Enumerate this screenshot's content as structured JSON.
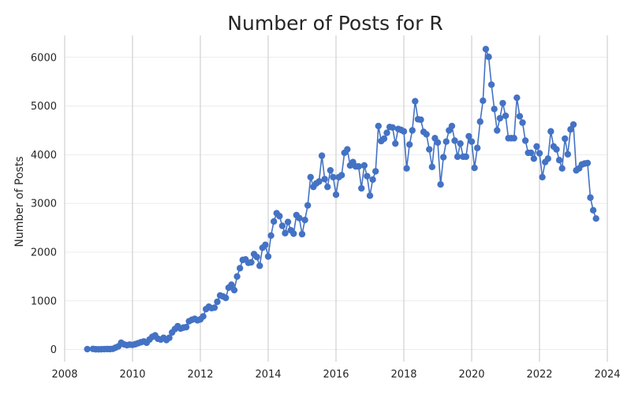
{
  "chart_data": {
    "type": "line",
    "title": "Number of Posts for R",
    "xlabel": "",
    "ylabel": "Number of Posts",
    "x_ticks": [
      "2008",
      "2010",
      "2012",
      "2014",
      "2016",
      "2018",
      "2020",
      "2022",
      "2024"
    ],
    "y_ticks": [
      "0",
      "1000",
      "2000",
      "3000",
      "4000",
      "5000",
      "6000"
    ],
    "xlim": [
      "2008-01",
      "2024-01"
    ],
    "ylim": [
      -250,
      6450
    ],
    "grid": true,
    "marker": "circle",
    "series": [
      {
        "color": "#4472C4",
        "points": [
          [
            "2008-09",
            8
          ],
          [
            "2008-11",
            12
          ],
          [
            "2008-12",
            5
          ],
          [
            "2009-01",
            4
          ],
          [
            "2009-02",
            6
          ],
          [
            "2009-03",
            8
          ],
          [
            "2009-04",
            10
          ],
          [
            "2009-05",
            9
          ],
          [
            "2009-06",
            14
          ],
          [
            "2009-07",
            38
          ],
          [
            "2009-08",
            65
          ],
          [
            "2009-09",
            140
          ],
          [
            "2009-10",
            105
          ],
          [
            "2009-11",
            90
          ],
          [
            "2009-12",
            100
          ],
          [
            "2010-01",
            95
          ],
          [
            "2010-02",
            110
          ],
          [
            "2010-03",
            130
          ],
          [
            "2010-04",
            150
          ],
          [
            "2010-05",
            165
          ],
          [
            "2010-06",
            140
          ],
          [
            "2010-07",
            205
          ],
          [
            "2010-08",
            260
          ],
          [
            "2010-09",
            290
          ],
          [
            "2010-10",
            220
          ],
          [
            "2010-11",
            205
          ],
          [
            "2010-12",
            240
          ],
          [
            "2011-01",
            195
          ],
          [
            "2011-02",
            240
          ],
          [
            "2011-03",
            350
          ],
          [
            "2011-04",
            420
          ],
          [
            "2011-05",
            480
          ],
          [
            "2011-06",
            430
          ],
          [
            "2011-07",
            450
          ],
          [
            "2011-08",
            460
          ],
          [
            "2011-09",
            580
          ],
          [
            "2011-10",
            610
          ],
          [
            "2011-11",
            630
          ],
          [
            "2011-12",
            600
          ],
          [
            "2012-01",
            620
          ],
          [
            "2012-02",
            680
          ],
          [
            "2012-03",
            830
          ],
          [
            "2012-04",
            880
          ],
          [
            "2012-05",
            850
          ],
          [
            "2012-06",
            860
          ],
          [
            "2012-07",
            980
          ],
          [
            "2012-08",
            1110
          ],
          [
            "2012-09",
            1090
          ],
          [
            "2012-10",
            1060
          ],
          [
            "2012-11",
            1270
          ],
          [
            "2012-12",
            1330
          ],
          [
            "2013-01",
            1220
          ],
          [
            "2013-02",
            1500
          ],
          [
            "2013-03",
            1670
          ],
          [
            "2013-04",
            1840
          ],
          [
            "2013-05",
            1850
          ],
          [
            "2013-06",
            1780
          ],
          [
            "2013-07",
            1790
          ],
          [
            "2013-08",
            1960
          ],
          [
            "2013-09",
            1900
          ],
          [
            "2013-10",
            1720
          ],
          [
            "2013-11",
            2090
          ],
          [
            "2013-12",
            2150
          ],
          [
            "2014-01",
            1910
          ],
          [
            "2014-02",
            2340
          ],
          [
            "2014-03",
            2630
          ],
          [
            "2014-04",
            2800
          ],
          [
            "2014-05",
            2740
          ],
          [
            "2014-06",
            2540
          ],
          [
            "2014-07",
            2390
          ],
          [
            "2014-08",
            2620
          ],
          [
            "2014-09",
            2450
          ],
          [
            "2014-10",
            2380
          ],
          [
            "2014-11",
            2760
          ],
          [
            "2014-12",
            2700
          ],
          [
            "2015-01",
            2370
          ],
          [
            "2015-02",
            2660
          ],
          [
            "2015-03",
            2960
          ],
          [
            "2015-04",
            3540
          ],
          [
            "2015-05",
            3340
          ],
          [
            "2015-06",
            3410
          ],
          [
            "2015-07",
            3450
          ],
          [
            "2015-08",
            3980
          ],
          [
            "2015-09",
            3500
          ],
          [
            "2015-10",
            3340
          ],
          [
            "2015-11",
            3680
          ],
          [
            "2015-12",
            3540
          ],
          [
            "2016-01",
            3180
          ],
          [
            "2016-02",
            3540
          ],
          [
            "2016-03",
            3580
          ],
          [
            "2016-04",
            4040
          ],
          [
            "2016-05",
            4110
          ],
          [
            "2016-06",
            3780
          ],
          [
            "2016-07",
            3850
          ],
          [
            "2016-08",
            3760
          ],
          [
            "2016-09",
            3760
          ],
          [
            "2016-10",
            3310
          ],
          [
            "2016-11",
            3780
          ],
          [
            "2016-12",
            3560
          ],
          [
            "2017-01",
            3160
          ],
          [
            "2017-02",
            3490
          ],
          [
            "2017-03",
            3660
          ],
          [
            "2017-04",
            4590
          ],
          [
            "2017-05",
            4280
          ],
          [
            "2017-06",
            4330
          ],
          [
            "2017-07",
            4450
          ],
          [
            "2017-08",
            4570
          ],
          [
            "2017-09",
            4560
          ],
          [
            "2017-10",
            4230
          ],
          [
            "2017-11",
            4530
          ],
          [
            "2017-12",
            4510
          ],
          [
            "2018-01",
            4480
          ],
          [
            "2018-02",
            3720
          ],
          [
            "2018-03",
            4210
          ],
          [
            "2018-04",
            4500
          ],
          [
            "2018-05",
            5100
          ],
          [
            "2018-06",
            4730
          ],
          [
            "2018-07",
            4720
          ],
          [
            "2018-08",
            4470
          ],
          [
            "2018-09",
            4420
          ],
          [
            "2018-10",
            4110
          ],
          [
            "2018-11",
            3750
          ],
          [
            "2018-12",
            4340
          ],
          [
            "2019-01",
            4250
          ],
          [
            "2019-02",
            3390
          ],
          [
            "2019-03",
            3950
          ],
          [
            "2019-04",
            4270
          ],
          [
            "2019-05",
            4500
          ],
          [
            "2019-06",
            4590
          ],
          [
            "2019-07",
            4290
          ],
          [
            "2019-08",
            3960
          ],
          [
            "2019-09",
            4230
          ],
          [
            "2019-10",
            3960
          ],
          [
            "2019-11",
            3960
          ],
          [
            "2019-12",
            4380
          ],
          [
            "2020-01",
            4270
          ],
          [
            "2020-02",
            3730
          ],
          [
            "2020-03",
            4140
          ],
          [
            "2020-04",
            4680
          ],
          [
            "2020-05",
            5110
          ],
          [
            "2020-06",
            6170
          ],
          [
            "2020-07",
            6010
          ],
          [
            "2020-08",
            5440
          ],
          [
            "2020-09",
            4940
          ],
          [
            "2020-10",
            4500
          ],
          [
            "2020-11",
            4750
          ],
          [
            "2020-12",
            5060
          ],
          [
            "2021-01",
            4800
          ],
          [
            "2021-02",
            4340
          ],
          [
            "2021-03",
            4340
          ],
          [
            "2021-04",
            4340
          ],
          [
            "2021-05",
            5170
          ],
          [
            "2021-06",
            4790
          ],
          [
            "2021-07",
            4660
          ],
          [
            "2021-08",
            4290
          ],
          [
            "2021-09",
            4040
          ],
          [
            "2021-10",
            4040
          ],
          [
            "2021-11",
            3920
          ],
          [
            "2021-12",
            4170
          ],
          [
            "2022-01",
            4030
          ],
          [
            "2022-02",
            3540
          ],
          [
            "2022-03",
            3850
          ],
          [
            "2022-04",
            3920
          ],
          [
            "2022-05",
            4480
          ],
          [
            "2022-06",
            4170
          ],
          [
            "2022-07",
            4110
          ],
          [
            "2022-08",
            3890
          ],
          [
            "2022-09",
            3720
          ],
          [
            "2022-10",
            4330
          ],
          [
            "2022-11",
            4010
          ],
          [
            "2022-12",
            4520
          ],
          [
            "2023-01",
            4620
          ],
          [
            "2023-02",
            3680
          ],
          [
            "2023-03",
            3720
          ],
          [
            "2023-04",
            3800
          ],
          [
            "2023-05",
            3820
          ],
          [
            "2023-06",
            3830
          ],
          [
            "2023-07",
            3120
          ],
          [
            "2023-08",
            2860
          ],
          [
            "2023-09",
            2690
          ]
        ]
      }
    ]
  }
}
